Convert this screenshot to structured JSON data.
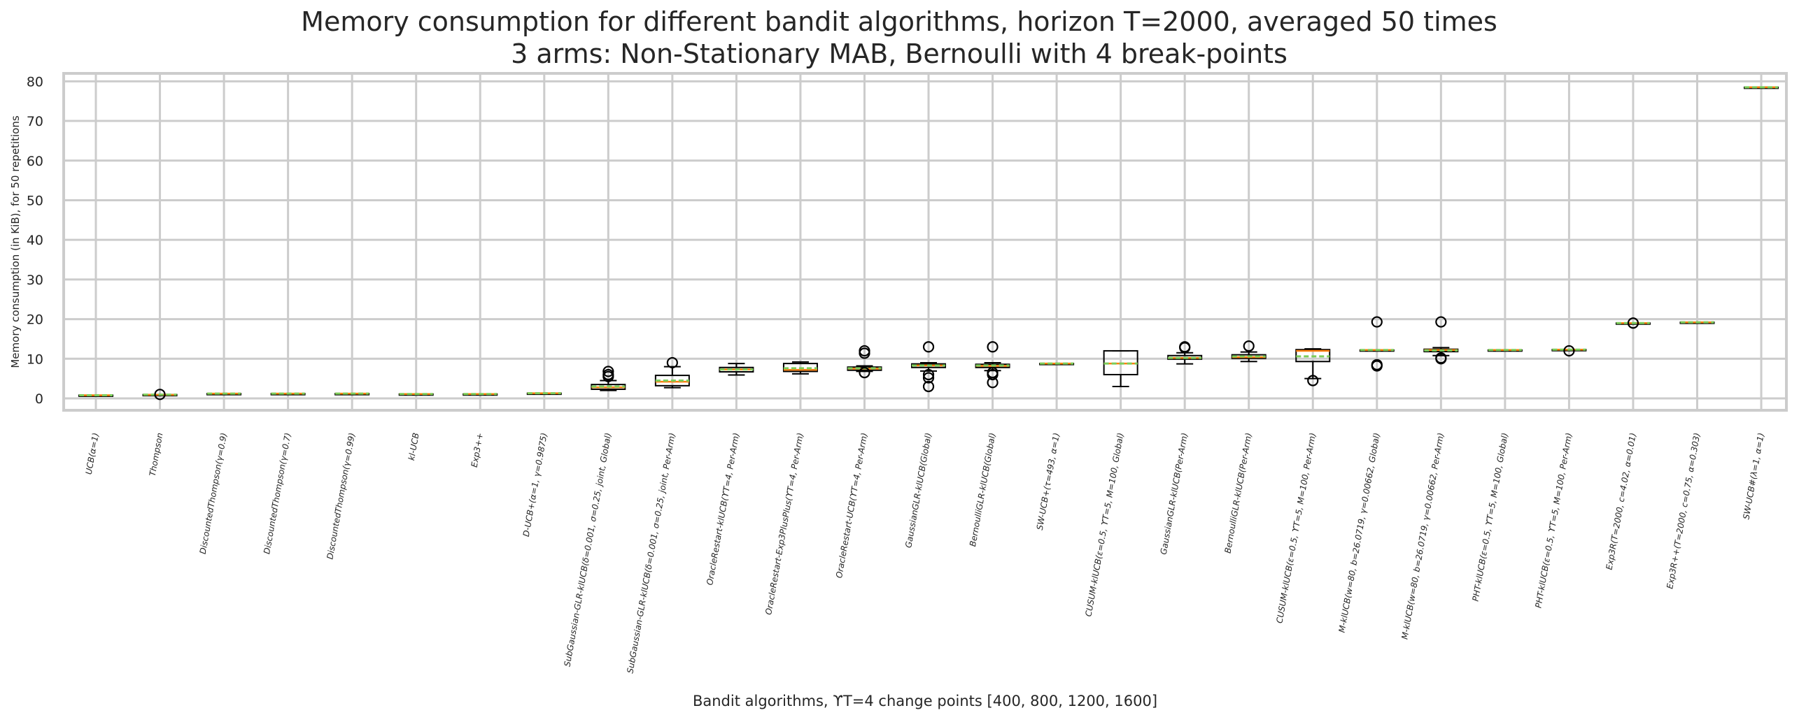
{
  "chart_data": {
    "type": "box",
    "title": "Memory consumption for different bandit algorithms, horizon T=2000, averaged 50 times",
    "subtitle": "3 arms: Non-Stationary MAB, Bernoulli with 4 break-points",
    "xlabel": "Bandit algorithms, ϒT=4 change points [400, 800, 1200, 1600]",
    "ylabel": "Memory consumption (in KiB), for 50 repetitions",
    "ylim": [
      -3,
      82
    ],
    "yticks": [
      0,
      10,
      20,
      30,
      40,
      50,
      60,
      70,
      80
    ],
    "grid": true,
    "colors": {
      "box": "#000000",
      "median": "#ff7f0e",
      "mean": "#7ccd5a",
      "grid": "#cccccc",
      "frame": "#cccccc"
    },
    "categories": [
      "UCB(α=1)",
      "Thompson",
      "DiscountedThompson(γ=0.9)",
      "DiscountedThompson(γ=0.7)",
      "DiscountedThompson(γ=0.99)",
      "kl-UCB",
      "Exp3++",
      "D-UCB+(α=1, γ=0.9875)",
      "SubGaussian-GLR-klUCB(δ=0.001, σ=0.25, joint, Global)",
      "SubGaussian-GLR-klUCB(δ=0.001, σ=0.25, joint, Per-Arm)",
      "OracleRestart-klUCB(ϒT=4, Per-Arm)",
      "OracleRestart-Exp3PlusPlus(ϒT=4, Per-Arm)",
      "OracleRestart-UCB(ϒT=4, Per-Arm)",
      "GaussianGLR-klUCB(Global)",
      "BernoulliGLR-klUCB(Global)",
      "SW-UCB+(τ=493, α=1)",
      "CUSUM-klUCB(ε=0.5, ϒT=5, M=100, Global)",
      "GaussianGLR-klUCB(Per-Arm)",
      "BernoulliGLR-klUCB(Per-Arm)",
      "CUSUM-klUCB(ε=0.5, ϒT=5, M=100, Per-Arm)",
      "M-klUCB(w=80, b=26.0719, γ=0.00662, Global)",
      "M-klUCB(w=80, b=26.0719, γ=0.00662, Per-Arm)",
      "PHT-klUCB(ε=0.5, ϒT=5, M=100, Global)",
      "PHT-klUCB(ε=0.5, ϒT=5, M=100, Per-Arm)",
      "Exp3R(T=2000, c=4.02, α=0.01)",
      "Exp3R++(T=2000, c=0.75, α=0.303)",
      "SW-UCB#(λ=1, α=1)"
    ],
    "boxes": [
      {
        "min": 0.8,
        "q1": 0.8,
        "median": 0.8,
        "mean": 0.8,
        "q3": 0.8,
        "max": 0.8,
        "outliers": []
      },
      {
        "min": 0.9,
        "q1": 0.9,
        "median": 0.9,
        "mean": 0.95,
        "q3": 0.95,
        "max": 0.95,
        "outliers": [
          1.0
        ]
      },
      {
        "min": 1.2,
        "q1": 1.2,
        "median": 1.2,
        "mean": 1.2,
        "q3": 1.2,
        "max": 1.2,
        "outliers": []
      },
      {
        "min": 1.2,
        "q1": 1.2,
        "median": 1.2,
        "mean": 1.2,
        "q3": 1.2,
        "max": 1.2,
        "outliers": []
      },
      {
        "min": 1.2,
        "q1": 1.2,
        "median": 1.2,
        "mean": 1.2,
        "q3": 1.2,
        "max": 1.2,
        "outliers": []
      },
      {
        "min": 1.1,
        "q1": 1.1,
        "median": 1.1,
        "mean": 1.1,
        "q3": 1.1,
        "max": 1.1,
        "outliers": []
      },
      {
        "min": 1.1,
        "q1": 1.1,
        "median": 1.1,
        "mean": 1.1,
        "q3": 1.1,
        "max": 1.1,
        "outliers": []
      },
      {
        "min": 1.3,
        "q1": 1.3,
        "median": 1.3,
        "mean": 1.3,
        "q3": 1.3,
        "max": 1.3,
        "outliers": []
      },
      {
        "min": 2.0,
        "q1": 2.3,
        "median": 2.8,
        "mean": 3.0,
        "q3": 3.5,
        "max": 4.5,
        "outliers": [
          5.5,
          6.0,
          6.8
        ]
      },
      {
        "min": 2.7,
        "q1": 3.2,
        "median": 4.2,
        "mean": 4.5,
        "q3": 5.8,
        "max": 8.0,
        "outliers": [
          9.0
        ]
      },
      {
        "min": 5.9,
        "q1": 6.7,
        "median": 7.3,
        "mean": 7.3,
        "q3": 7.8,
        "max": 8.8,
        "outliers": []
      },
      {
        "min": 6.2,
        "q1": 6.8,
        "median": 7.2,
        "mean": 7.6,
        "q3": 8.8,
        "max": 9.2,
        "outliers": []
      },
      {
        "min": 6.8,
        "q1": 7.1,
        "median": 7.5,
        "mean": 7.6,
        "q3": 7.9,
        "max": 8.2,
        "outliers": [
          6.5,
          11.4,
          12.0
        ]
      },
      {
        "min": 6.9,
        "q1": 7.8,
        "median": 8.3,
        "mean": 8.3,
        "q3": 8.7,
        "max": 9.0,
        "outliers": [
          6.0,
          5.2,
          3.0,
          13.0
        ]
      },
      {
        "min": 7.0,
        "q1": 7.8,
        "median": 8.2,
        "mean": 8.3,
        "q3": 8.6,
        "max": 9.0,
        "outliers": [
          6.5,
          6.0,
          4.0,
          13.0
        ]
      },
      {
        "min": 8.8,
        "q1": 8.8,
        "median": 8.8,
        "mean": 8.8,
        "q3": 8.8,
        "max": 8.8,
        "outliers": []
      },
      {
        "min": 3.0,
        "q1": 6.0,
        "median": 8.8,
        "mean": 8.8,
        "q3": 12.0,
        "max": 12.0,
        "outliers": []
      },
      {
        "min": 8.7,
        "q1": 9.9,
        "median": 10.2,
        "mean": 10.2,
        "q3": 10.8,
        "max": 11.5,
        "outliers": [
          12.8,
          13.0
        ]
      },
      {
        "min": 9.3,
        "q1": 10.1,
        "median": 10.4,
        "mean": 10.6,
        "q3": 11.0,
        "max": 11.7,
        "outliers": [
          13.2
        ]
      },
      {
        "min": 5.0,
        "q1": 9.3,
        "median": 12.0,
        "mean": 10.6,
        "q3": 12.3,
        "max": 12.5,
        "outliers": [
          4.5
        ]
      },
      {
        "min": 12.2,
        "q1": 12.2,
        "median": 12.2,
        "mean": 12.2,
        "q3": 12.2,
        "max": 12.2,
        "outliers": [
          8.2,
          8.5,
          19.3
        ]
      },
      {
        "min": 10.8,
        "q1": 11.8,
        "median": 12.2,
        "mean": 12.1,
        "q3": 12.4,
        "max": 12.8,
        "outliers": [
          10.2,
          10.0,
          19.3
        ]
      },
      {
        "min": 12.2,
        "q1": 12.2,
        "median": 12.2,
        "mean": 12.2,
        "q3": 12.2,
        "max": 12.2,
        "outliers": []
      },
      {
        "min": 12.3,
        "q1": 12.3,
        "median": 12.3,
        "mean": 12.3,
        "q3": 12.3,
        "max": 12.3,
        "outliers": [
          12.0
        ]
      },
      {
        "min": 19.0,
        "q1": 19.0,
        "median": 19.0,
        "mean": 19.0,
        "q3": 19.0,
        "max": 19.0,
        "outliers": [
          19.0
        ]
      },
      {
        "min": 19.2,
        "q1": 19.2,
        "median": 19.2,
        "mean": 19.2,
        "q3": 19.2,
        "max": 19.2,
        "outliers": []
      },
      {
        "min": 78.5,
        "q1": 78.5,
        "median": 78.5,
        "mean": 78.5,
        "q3": 78.5,
        "max": 78.5,
        "outliers": []
      }
    ]
  }
}
